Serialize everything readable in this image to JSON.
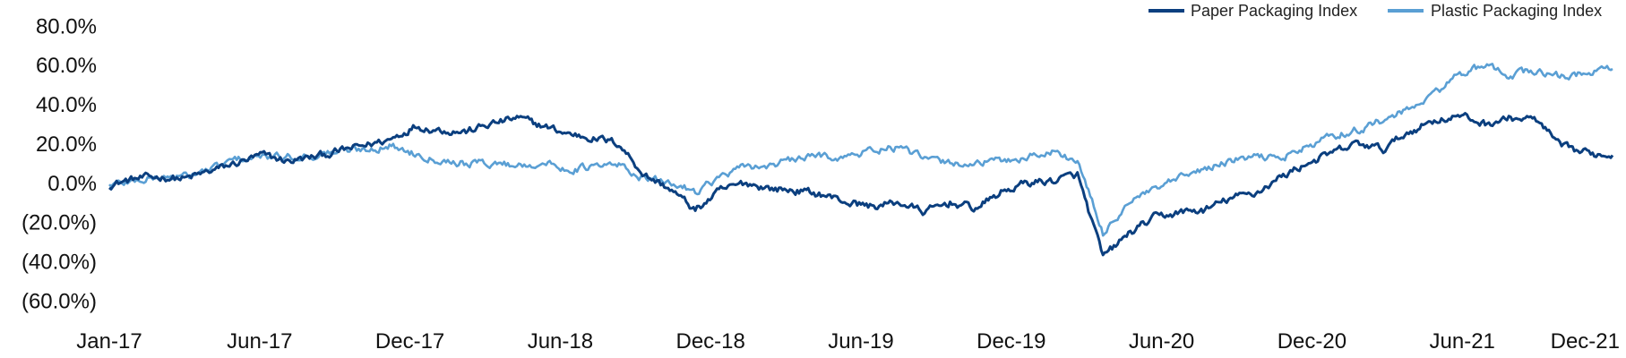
{
  "chart_data": {
    "type": "line",
    "title": "",
    "xlabel": "",
    "ylabel": "",
    "legend_position": "top-right",
    "grid": false,
    "xlim": [
      "2017-01",
      "2021-12"
    ],
    "ylim": [
      -60,
      80
    ],
    "x_ticks": [
      "Jan-17",
      "Jun-17",
      "Dec-17",
      "Jun-18",
      "Dec-18",
      "Jun-19",
      "Dec-19",
      "Jun-20",
      "Dec-20",
      "Jun-21",
      "Dec-21"
    ],
    "y_ticks": [
      {
        "value": 80,
        "label": "80.0%"
      },
      {
        "value": 60,
        "label": "60.0%"
      },
      {
        "value": 40,
        "label": "40.0%"
      },
      {
        "value": 20,
        "label": "20.0%"
      },
      {
        "value": 0,
        "label": "0.0%"
      },
      {
        "value": -20,
        "label": "(20.0%)"
      },
      {
        "value": -40,
        "label": "(40.0%)"
      },
      {
        "value": -60,
        "label": "(60.0%)"
      }
    ],
    "x": [
      "2017-01",
      "2017-02",
      "2017-03",
      "2017-04",
      "2017-05",
      "2017-06",
      "2017-07",
      "2017-08",
      "2017-09",
      "2017-10",
      "2017-11",
      "2017-12",
      "2018-01",
      "2018-02",
      "2018-03",
      "2018-04",
      "2018-05",
      "2018-06",
      "2018-07",
      "2018-08",
      "2018-09",
      "2018-10",
      "2018-11",
      "2018-12",
      "2019-01",
      "2019-02",
      "2019-03",
      "2019-04",
      "2019-05",
      "2019-06",
      "2019-07",
      "2019-08",
      "2019-09",
      "2019-10",
      "2019-11",
      "2019-12",
      "2020-01",
      "2020-02",
      "2020-03",
      "2020-04",
      "2020-05",
      "2020-06",
      "2020-07",
      "2020-08",
      "2020-09",
      "2020-10",
      "2020-11",
      "2020-12",
      "2021-01",
      "2021-02",
      "2021-03",
      "2021-04",
      "2021-05",
      "2021-06",
      "2021-07",
      "2021-08",
      "2021-09",
      "2021-10",
      "2021-11",
      "2021-12"
    ],
    "series": [
      {
        "name": "Paper Packaging Index",
        "color": "#0b3f7f",
        "values": [
          0,
          3,
          4,
          3,
          7,
          11,
          15,
          12,
          14,
          17,
          20,
          23,
          30,
          28,
          27,
          31,
          34,
          30,
          26,
          24,
          21,
          5,
          -2,
          -13,
          -3,
          1,
          -2,
          -3,
          -5,
          -9,
          -11,
          -9,
          -14,
          -9,
          -12,
          -4,
          1,
          2,
          5,
          -37,
          -25,
          -17,
          -14,
          -13,
          -7,
          -4,
          4,
          11,
          16,
          21,
          18,
          27,
          33,
          35,
          31,
          34,
          33,
          19,
          16,
          15
        ]
      },
      {
        "name": "Plastic Packaging Index",
        "color": "#5a9fd4",
        "values": [
          0,
          2,
          4,
          4,
          8,
          13,
          14,
          14,
          15,
          17,
          18,
          20,
          16,
          13,
          11,
          11,
          10,
          11,
          8,
          9,
          10,
          3,
          1,
          -3,
          4,
          9,
          10,
          13,
          15,
          14,
          18,
          19,
          13,
          11,
          11,
          12,
          14,
          17,
          12,
          -25,
          -9,
          -3,
          3,
          8,
          12,
          14,
          14,
          19,
          25,
          28,
          33,
          38,
          46,
          57,
          60,
          56,
          58,
          55,
          57,
          59
        ]
      }
    ]
  }
}
